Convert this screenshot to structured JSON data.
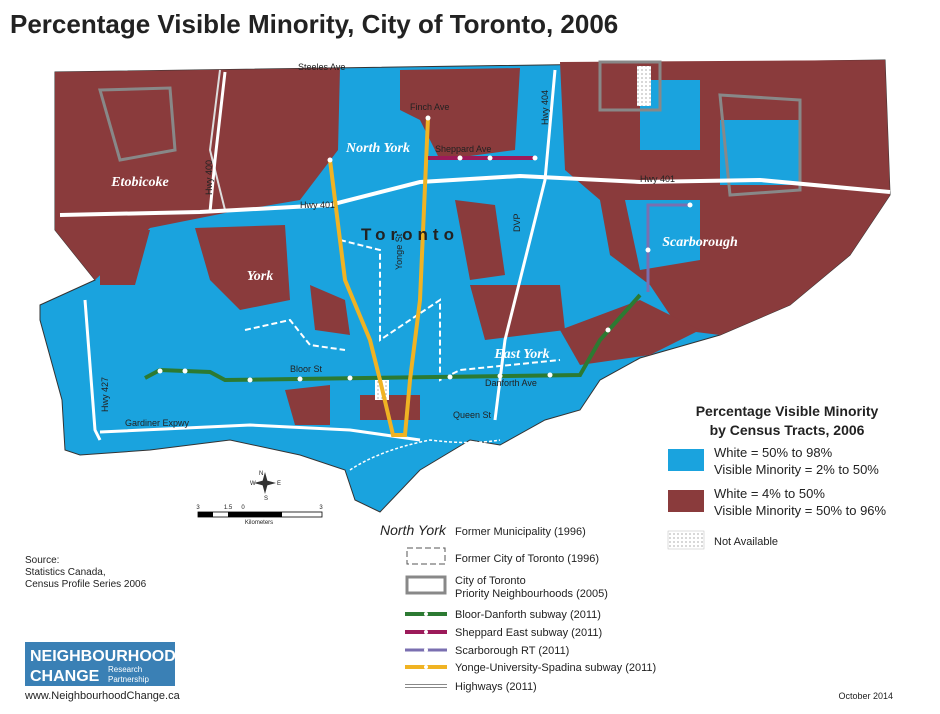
{
  "title": "Percentage Visible Minority, City of Toronto, 2006",
  "map_labels": {
    "city": "Toronto",
    "municipalities": [
      "North York",
      "Etobicoke",
      "York",
      "Scarborough",
      "East York"
    ],
    "roads": [
      "Steeles Ave",
      "Finch Ave",
      "Sheppard Ave",
      "Hwy 401",
      "Hwy 401",
      "Hwy 404",
      "Hwy 400",
      "DVP",
      "Yonge St",
      "Bloor St",
      "Danforth Ave",
      "Queen St",
      "Gardiner Expwy",
      "Hwy 427"
    ]
  },
  "compass": [
    "N",
    "E",
    "S",
    "W"
  ],
  "scale_bar": {
    "ticks": [
      "3",
      "1.5",
      "0",
      "3"
    ],
    "unit": "Kilometers"
  },
  "legend": {
    "title": [
      "Percentage Visible Minority",
      "by Census Tracts, 2006"
    ],
    "items": [
      {
        "lines": [
          "White = 50% to 98%",
          "Visible Minority = 2% to 50%"
        ],
        "color": "#1aa3de"
      },
      {
        "lines": [
          "White = 4% to 50%",
          "Visible Minority = 50% to 96%"
        ],
        "color": "#8a3b3c"
      }
    ],
    "not_available": "Not Available"
  },
  "line_legend": [
    {
      "sample": "North York",
      "lines": [
        "Former Municipality (1996)"
      ]
    },
    {
      "lines": [
        "Former City of Toronto (1996)"
      ]
    },
    {
      "lines": [
        "City of Toronto",
        "Priority Neighbourhoods (2005)"
      ]
    },
    {
      "lines": [
        "Bloor-Danforth subway (2011)"
      ]
    },
    {
      "lines": [
        "Sheppard East subway (2011)"
      ]
    },
    {
      "lines": [
        "Scarborough RT (2011)"
      ]
    },
    {
      "lines": [
        "Yonge-University-Spadina subway (2011)"
      ]
    },
    {
      "lines": [
        "Highways (2011)"
      ]
    }
  ],
  "source": [
    "Source:",
    "Statistics Canada,",
    "Census Profile Series 2006"
  ],
  "logo": {
    "line1": "NEIGHBOURHOOD",
    "line2": "CHANGE",
    "tag": [
      "Research",
      "Partnership"
    ]
  },
  "url": "www.NeighbourhoodChange.ca",
  "date": "October 2014"
}
